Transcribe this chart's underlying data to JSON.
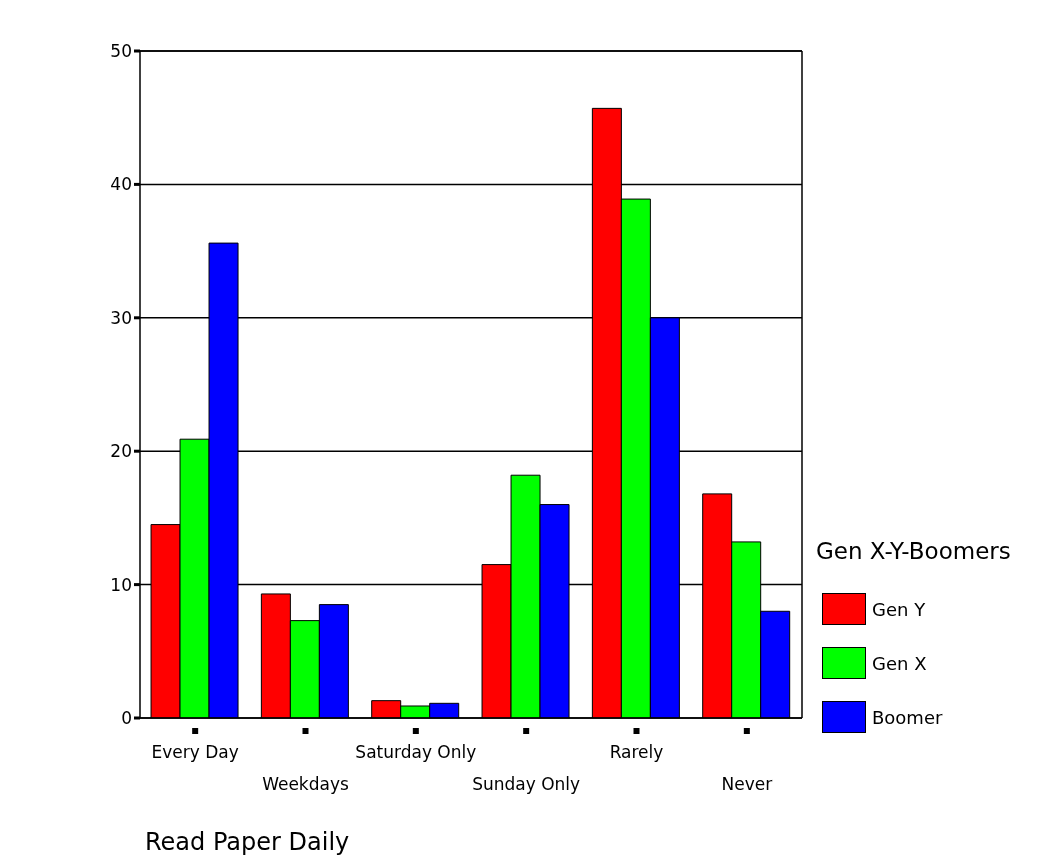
{
  "chart_data": {
    "type": "bar",
    "xlabel": "Read Paper Daily",
    "legend_title": "Gen X-Y-Boomers",
    "categories": [
      "Every Day",
      "Weekdays",
      "Saturday Only",
      "Sunday Only",
      "Rarely",
      "Never"
    ],
    "series": [
      {
        "name": "Gen Y",
        "color": "#ff0000",
        "values": [
          14.5,
          9.3,
          1.3,
          11.5,
          45.7,
          16.8
        ]
      },
      {
        "name": "Gen X",
        "color": "#00ff00",
        "values": [
          20.9,
          7.3,
          0.9,
          18.2,
          38.9,
          13.2
        ]
      },
      {
        "name": "Boomer",
        "color": "#0000ff",
        "values": [
          35.6,
          8.5,
          1.1,
          16.0,
          30.0,
          8.0
        ]
      }
    ],
    "ylim": [
      0,
      50
    ],
    "yticks": [
      0,
      10,
      20,
      30,
      40,
      50
    ],
    "grid": "y",
    "legend": "right"
  }
}
